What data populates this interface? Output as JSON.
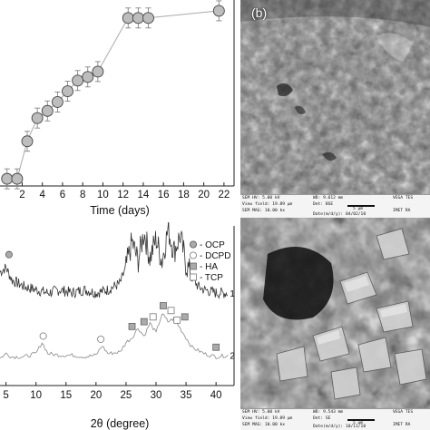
{
  "chart_data": [
    {
      "type": "scatter",
      "title": "",
      "xlabel": "Time (days)",
      "ylabel": "",
      "xlim": [
        -0.2,
        23
      ],
      "ylim": [
        0,
        1
      ],
      "x_ticks": [
        2,
        4,
        6,
        8,
        10,
        12,
        14,
        16,
        18,
        20,
        22
      ],
      "series": [
        {
          "x": [
            0.5,
            1.5,
            2.5,
            3.5,
            4.5,
            5.5,
            6.5,
            7.5,
            8.5,
            9.5,
            12.5,
            13.5,
            14.5,
            21.5
          ],
          "y": [
            0.04,
            0.04,
            0.25,
            0.38,
            0.42,
            0.47,
            0.53,
            0.59,
            0.61,
            0.64,
            0.94,
            0.94,
            0.94,
            0.98
          ]
        }
      ],
      "error_bars": true,
      "marker": "circle-grey",
      "line": true
    },
    {
      "type": "line",
      "title": "",
      "xlabel": "2θ (degree)",
      "ylabel": "",
      "xlim": [
        4,
        43
      ],
      "ylim": [
        0,
        1
      ],
      "x_ticks": [
        5,
        10,
        15,
        20,
        25,
        30,
        35,
        40
      ],
      "legend": {
        "placement": "top-right",
        "entries": [
          {
            "label": "- OCP",
            "marker": "filled-circle"
          },
          {
            "label": "- DCPD",
            "marker": "open-circle"
          },
          {
            "label": "- HA",
            "marker": "filled-square"
          },
          {
            "label": "- TCP",
            "marker": "open-square"
          }
        ]
      },
      "series": [
        {
          "name": "1",
          "pattern": [
            [
              4,
              0.71
            ],
            [
              5,
              0.74
            ],
            [
              6,
              0.66
            ],
            [
              8,
              0.62
            ],
            [
              10,
              0.6
            ],
            [
              12,
              0.58
            ],
            [
              14,
              0.6
            ],
            [
              16,
              0.58
            ],
            [
              18,
              0.6
            ],
            [
              20,
              0.58
            ],
            [
              22,
              0.6
            ],
            [
              24,
              0.64
            ],
            [
              25,
              0.74
            ],
            [
              26,
              0.9
            ],
            [
              27,
              0.78
            ],
            [
              28,
              0.96
            ],
            [
              29,
              0.8
            ],
            [
              30,
              0.92
            ],
            [
              31,
              0.78
            ],
            [
              32,
              0.98
            ],
            [
              33,
              0.84
            ],
            [
              34,
              0.94
            ],
            [
              35,
              0.76
            ],
            [
              36,
              0.68
            ],
            [
              37,
              0.62
            ],
            [
              38,
              0.6
            ],
            [
              40,
              0.58
            ],
            [
              42,
              0.58
            ]
          ]
        },
        {
          "name": "2",
          "pattern": [
            [
              4,
              0.17
            ],
            [
              5,
              0.2
            ],
            [
              6,
              0.18
            ],
            [
              8,
              0.18
            ],
            [
              10,
              0.2
            ],
            [
              11,
              0.27
            ],
            [
              12,
              0.2
            ],
            [
              14,
              0.19
            ],
            [
              16,
              0.19
            ],
            [
              18,
              0.18
            ],
            [
              20,
              0.19
            ],
            [
              21,
              0.25
            ],
            [
              22,
              0.2
            ],
            [
              24,
              0.21
            ],
            [
              25,
              0.27
            ],
            [
              26,
              0.3
            ],
            [
              27,
              0.36
            ],
            [
              28,
              0.31
            ],
            [
              29,
              0.39
            ],
            [
              30,
              0.33
            ],
            [
              31,
              0.45
            ],
            [
              32,
              0.4
            ],
            [
              33,
              0.42
            ],
            [
              34,
              0.36
            ],
            [
              35,
              0.3
            ],
            [
              36,
              0.24
            ],
            [
              38,
              0.2
            ],
            [
              40,
              0.18
            ],
            [
              42,
              0.19
            ]
          ]
        }
      ],
      "markers": [
        {
          "x": 5.5,
          "y": 0.82,
          "kind": "OCP"
        },
        {
          "x": 11.2,
          "y": 0.31,
          "kind": "DCPD"
        },
        {
          "x": 20.8,
          "y": 0.29,
          "kind": "DCPD"
        },
        {
          "x": 26.0,
          "y": 0.37,
          "kind": "HA"
        },
        {
          "x": 28.0,
          "y": 0.4,
          "kind": "HA"
        },
        {
          "x": 29.5,
          "y": 0.43,
          "kind": "TCP"
        },
        {
          "x": 31.2,
          "y": 0.5,
          "kind": "HA"
        },
        {
          "x": 32.5,
          "y": 0.47,
          "kind": "TCP"
        },
        {
          "x": 34.8,
          "y": 0.43,
          "kind": "HA"
        },
        {
          "x": 33.5,
          "y": 0.41,
          "kind": "TCP"
        },
        {
          "x": 40.0,
          "y": 0.24,
          "kind": "HA"
        }
      ]
    }
  ],
  "sem_top": {
    "label": "(b)",
    "row1": [
      "SEM HV: 5.00 kV",
      "WD: 9.612 mm",
      "VEGA TES"
    ],
    "row2": [
      "View field: 19.89 µm",
      "Det: BSE",
      "5 µm"
    ],
    "row3": [
      "SEM MAG: 10.00 kx",
      "Date(m/d/y): 04/02/10",
      "IMET RA"
    ]
  },
  "sem_bottom": {
    "row1": [
      "SEM HV: 5.00 kV",
      "WD: 9.543 mm",
      "VEGA TES"
    ],
    "row2": [
      "View field: 19.89 µm",
      "Det: SE",
      "5 µm"
    ],
    "row3": [
      "SEM MAG: 10.00 kx",
      "Date(m/d/y): 10/11/10",
      "IMET RA"
    ]
  }
}
